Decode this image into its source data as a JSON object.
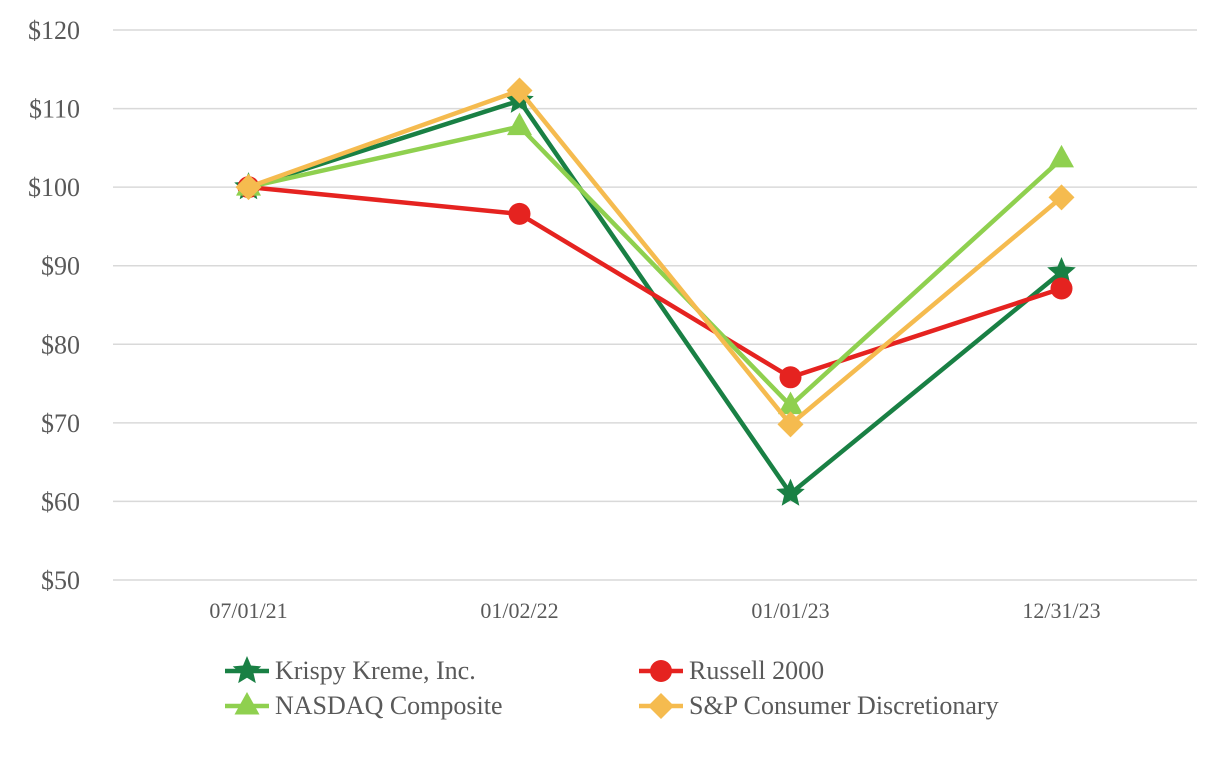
{
  "chart_data": {
    "type": "line",
    "title": "",
    "x_axis_label": "",
    "y_axis_label": "",
    "x_categories": [
      "07/01/21",
      "01/02/22",
      "01/01/23",
      "12/31/23"
    ],
    "y_tick_labels": [
      "$120",
      "$110",
      "$100",
      "$90",
      "$80",
      "$70",
      "$60",
      "$50"
    ],
    "y_tick_values": [
      120,
      110,
      100,
      90,
      80,
      70,
      60,
      50
    ],
    "ylim": [
      50,
      120
    ],
    "grid": "horizontal",
    "legend_position": "bottom",
    "series": [
      {
        "name": "Krispy Kreme, Inc.",
        "marker": "star",
        "color": "#198044",
        "values": [
          100,
          111.0,
          61.0,
          89.2
        ]
      },
      {
        "name": "Russell 2000",
        "marker": "circle",
        "color": "#e52320",
        "values": [
          100,
          96.6,
          75.8,
          87.1
        ]
      },
      {
        "name": "NASDAQ Composite",
        "marker": "triangle",
        "color": "#8fd04f",
        "values": [
          100,
          107.7,
          72.2,
          103.6
        ]
      },
      {
        "name": "S&P Consumer Discretionary",
        "marker": "diamond",
        "color": "#f5bb4f",
        "values": [
          100,
          112.3,
          69.8,
          98.7
        ]
      }
    ]
  },
  "colors": {
    "axis_text": "#595959",
    "gridline": "#d9d9d9",
    "background": "#ffffff"
  }
}
